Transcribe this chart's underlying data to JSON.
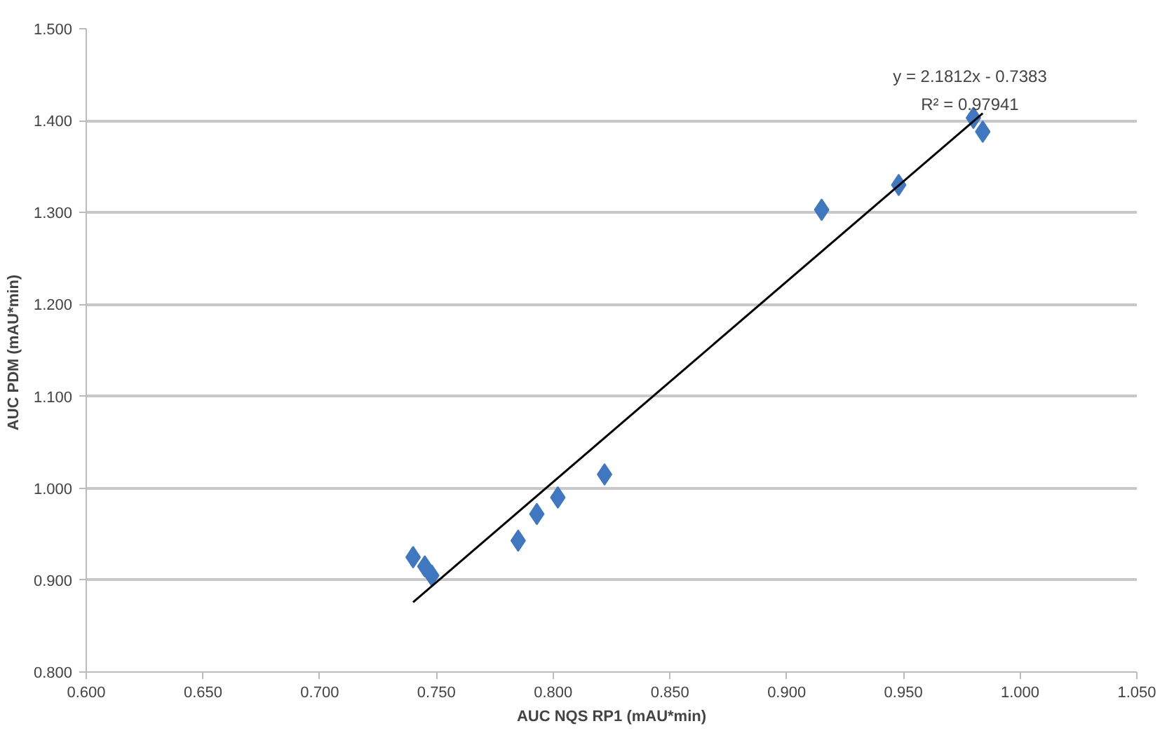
{
  "chart_data": {
    "type": "scatter",
    "xlabel": "AUC NQS RP1 (mAU*min)",
    "ylabel": "AUC PDM  (mAU*min)",
    "x": [
      0.74,
      0.745,
      0.748,
      0.785,
      0.793,
      0.802,
      0.822,
      0.915,
      0.948,
      0.98,
      0.984
    ],
    "series": [
      {
        "color": "#3f78c0",
        "marker": "diamond",
        "values": [
          0.925,
          0.915,
          0.905,
          0.943,
          0.972,
          0.99,
          1.015,
          1.303,
          1.33,
          1.403,
          1.388
        ]
      },
      {
        "type": "line",
        "marker": "none",
        "color": "#000000",
        "x": [
          0.74,
          0.984
        ],
        "values": [
          0.876,
          1.408
        ]
      }
    ],
    "annotations": [
      "y = 2.1812x - 0.7383",
      "R² = 0.97941"
    ],
    "grid": "y",
    "xlim": [
      0.6,
      1.05
    ],
    "ylim": [
      0.8,
      1.5
    ],
    "xticks": [
      {
        "value": 0.6,
        "label": "0.600"
      },
      {
        "value": 0.65,
        "label": "0.650"
      },
      {
        "value": 0.7,
        "label": "0.700"
      },
      {
        "value": 0.75,
        "label": "0.750"
      },
      {
        "value": 0.8,
        "label": "0.800"
      },
      {
        "value": 0.85,
        "label": "0.850"
      },
      {
        "value": 0.9,
        "label": "0.900"
      },
      {
        "value": 0.95,
        "label": "0.950"
      },
      {
        "value": 1.0,
        "label": "1.000"
      },
      {
        "value": 1.05,
        "label": "1.050"
      }
    ],
    "yticks": [
      {
        "value": 0.8,
        "label": "0.800"
      },
      {
        "value": 0.9,
        "label": "0.900"
      },
      {
        "value": 1.0,
        "label": "1.000"
      },
      {
        "value": 1.1,
        "label": "1.100"
      },
      {
        "value": 1.2,
        "label": "1.200"
      },
      {
        "value": 1.3,
        "label": "1.300"
      },
      {
        "value": 1.4,
        "label": "1.400"
      },
      {
        "value": 1.5,
        "label": "1.500"
      }
    ]
  }
}
